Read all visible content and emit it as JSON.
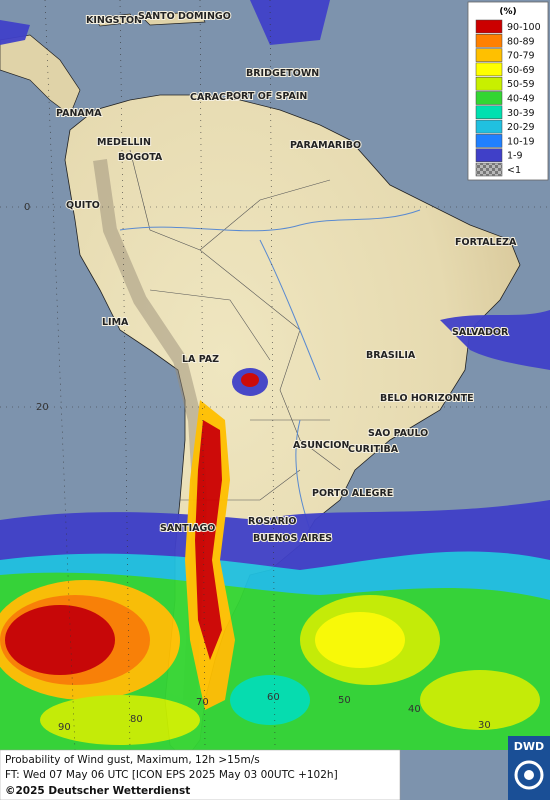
{
  "legend": {
    "title": "(%)",
    "entries": [
      {
        "label": "90-100",
        "color": "#cc0000"
      },
      {
        "label": "80-89",
        "color": "#ff8000"
      },
      {
        "label": "70-79",
        "color": "#ffc000"
      },
      {
        "label": "60-69",
        "color": "#ffff00"
      },
      {
        "label": "50-59",
        "color": "#c8f000"
      },
      {
        "label": "40-49",
        "color": "#33d633"
      },
      {
        "label": "30-39",
        "color": "#00e0b0"
      },
      {
        "label": "20-29",
        "color": "#20c0e0"
      },
      {
        "label": "10-19",
        "color": "#2080ff"
      },
      {
        "label": "1-9",
        "color": "#4040c8"
      },
      {
        "label": "<1",
        "color": "#b8b8b8"
      }
    ]
  },
  "cities": [
    "KINGSTON",
    "SANTO DOMINGO",
    "BRIDGETOWN",
    "PANAMA",
    "CARACAS",
    "PORT OF SPAIN",
    "MEDELLIN",
    "BOGOTA",
    "PARAMARIBO",
    "QUITO",
    "FORTALEZA",
    "LIMA",
    "SALVADOR",
    "LA PAZ",
    "BRASILIA",
    "BELO HORIZONTE",
    "ASUNCION",
    "SAO PAULO",
    "CURITIBA",
    "PORTO ALEGRE",
    "ROSARIO",
    "SANTIAGO",
    "BUENOS AIRES"
  ],
  "grid_labels": {
    "latitude": [
      "0",
      "20"
    ],
    "longitude": [
      "90",
      "80",
      "70",
      "60",
      "50",
      "40",
      "30"
    ]
  },
  "footer": {
    "lines": [
      "Probability of Wind gust, Maximum, 12h >15m/s",
      "FT: Wed 07 May 06 UTC [ICON EPS 2025 May 03 00UTC +102h]",
      "©2025 Deutscher Wetterdienst"
    ]
  },
  "logo": "DWD"
}
